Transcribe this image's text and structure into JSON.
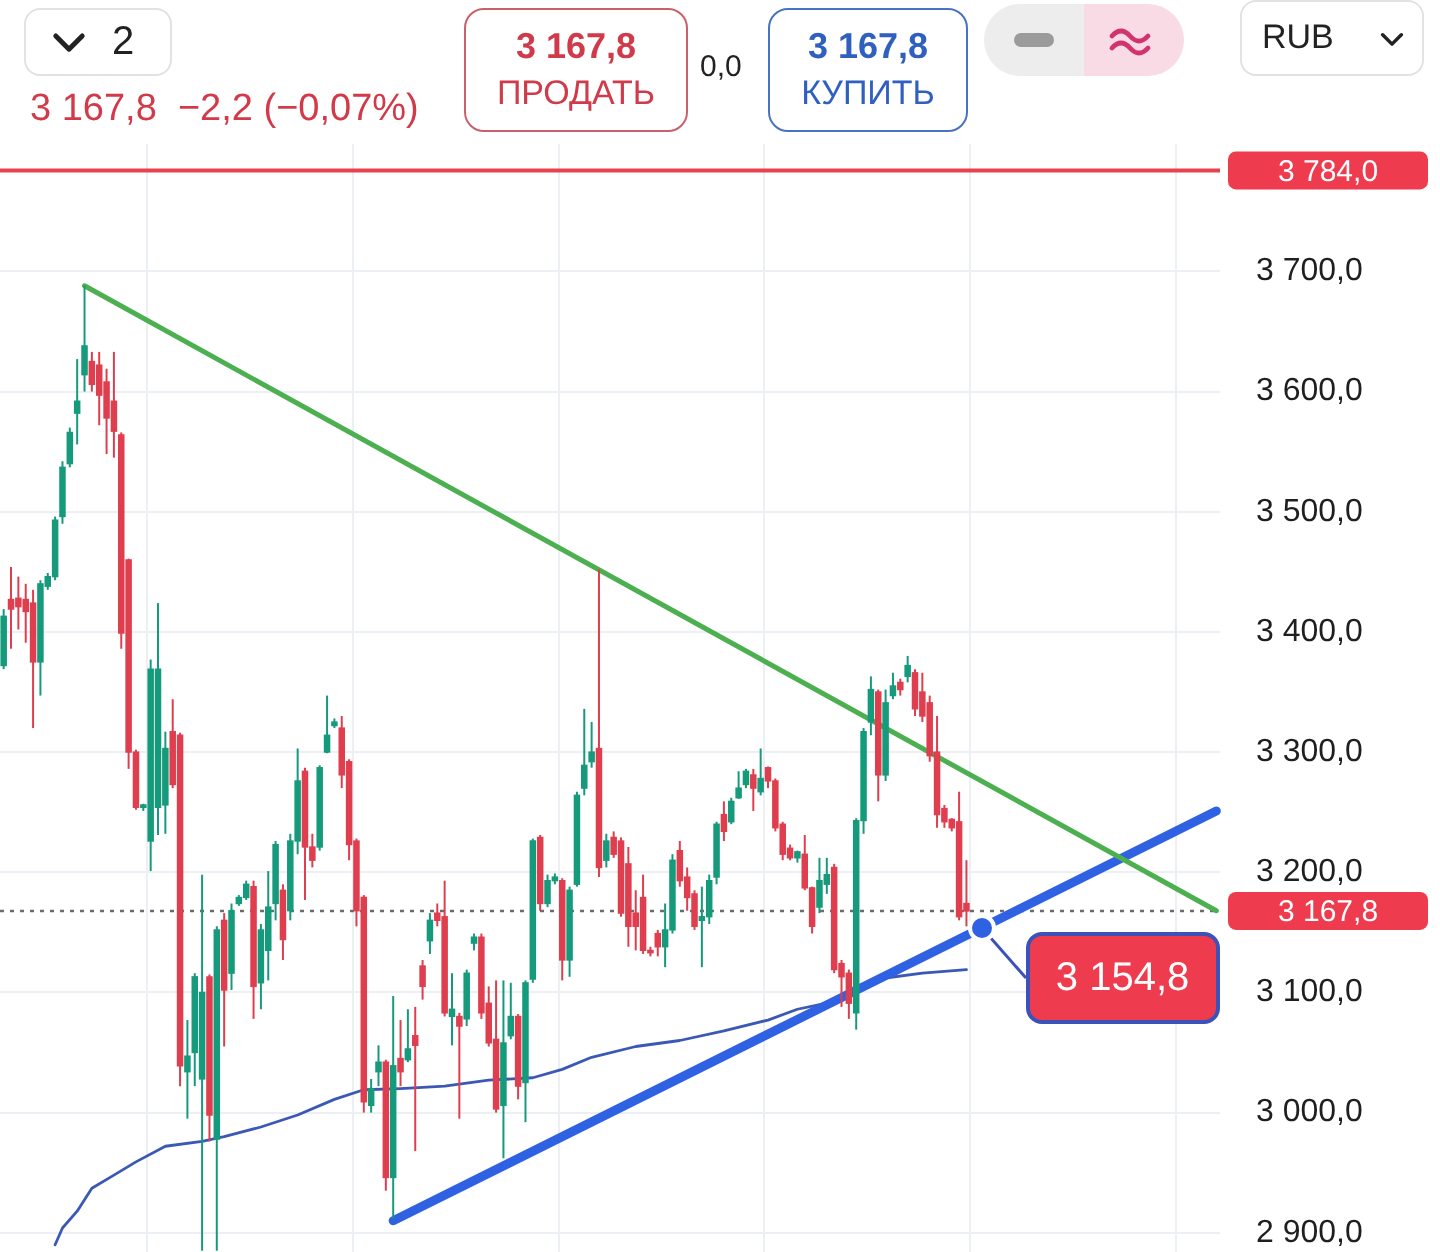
{
  "chart_data": {
    "type": "candlestick",
    "subtitle": "3 167,8  −2,2 (−0,07%)",
    "categories": [
      null,
      null,
      null,
      null,
      null,
      null,
      null,
      null,
      null,
      null,
      null,
      null,
      null,
      null,
      null,
      null,
      null,
      null,
      null,
      null,
      null,
      null,
      null,
      null,
      null,
      null,
      null,
      null,
      null,
      null,
      null,
      null,
      null,
      null,
      null,
      null,
      null,
      null,
      null,
      null,
      null,
      null,
      null,
      null,
      null,
      null,
      null,
      null,
      null,
      null,
      null,
      null,
      null,
      null,
      null,
      null,
      null,
      null,
      null,
      null,
      null,
      null,
      null,
      null,
      null,
      null,
      null,
      null,
      null,
      null,
      null,
      null,
      null,
      null,
      null,
      null,
      null,
      null,
      null,
      null,
      null,
      null,
      null,
      null,
      null,
      null,
      null,
      null,
      null,
      null,
      null,
      null,
      null,
      null,
      null,
      null,
      null,
      null,
      null,
      null,
      null,
      null,
      null,
      null,
      null,
      null,
      null,
      null,
      null,
      null,
      null,
      null,
      null,
      null,
      null,
      null,
      null,
      null,
      null,
      null,
      null,
      null,
      null,
      null,
      null,
      null,
      null,
      null,
      null,
      null,
      null,
      null,
      null,
      null,
      null,
      null,
      null,
      null,
      null,
      null,
      null,
      null,
      null,
      null,
      null,
      null,
      null,
      null,
      null,
      null,
      null,
      null,
      null,
      null,
      null,
      null,
      null,
      null,
      null,
      null,
      null,
      null,
      null,
      null,
      null,
      null
    ],
    "ohlc": [
      [
        3372,
        3419,
        3369,
        3413
      ],
      [
        3427,
        3454,
        3386,
        3419
      ],
      [
        3428,
        3446,
        3402,
        3421
      ],
      [
        3427,
        3440,
        3391,
        3417
      ],
      [
        3424,
        3435,
        3320,
        3375
      ],
      [
        3375,
        3443,
        3347,
        3440
      ],
      [
        3438,
        3449,
        3435,
        3446
      ],
      [
        3446,
        3496,
        3443,
        3493
      ],
      [
        3496,
        3542,
        3490,
        3537
      ],
      [
        3540,
        3570,
        3537,
        3566
      ],
      [
        3582,
        3627,
        3556,
        3592
      ],
      [
        3614,
        3688,
        3600,
        3638
      ],
      [
        3625,
        3633,
        3600,
        3606
      ],
      [
        3622,
        3633,
        3572,
        3597
      ],
      [
        3608,
        3619,
        3548,
        3578
      ],
      [
        3592,
        3633,
        3545,
        3567
      ],
      [
        3564,
        3566,
        3386,
        3399
      ],
      [
        3460,
        3461,
        3286,
        3300
      ],
      [
        3300,
        3302,
        3252,
        3254
      ],
      [
        3254,
        3257,
        3251,
        3256
      ],
      [
        3226,
        3377,
        3201,
        3369
      ],
      [
        3254,
        3424,
        3231,
        3369
      ],
      [
        3256,
        3317,
        3232,
        3303
      ],
      [
        3317,
        3344,
        3270,
        3273
      ],
      [
        3314,
        3316,
        3022,
        3039
      ],
      [
        3034,
        3077,
        2995,
        3047
      ],
      [
        3050,
        3116,
        3022,
        3113
      ],
      [
        3028,
        3198,
        2885,
        3100
      ],
      [
        3113,
        3115,
        2976,
        2998
      ],
      [
        2978,
        3155,
        2885,
        3152
      ],
      [
        3160,
        3166,
        3055,
        3102
      ],
      [
        3116,
        3174,
        3102,
        3168
      ],
      [
        3174,
        3181,
        3172,
        3179
      ],
      [
        3179,
        3193,
        3177,
        3190
      ],
      [
        3188,
        3193,
        3078,
        3105
      ],
      [
        3108,
        3157,
        3086,
        3152
      ],
      [
        3135,
        3201,
        3110,
        3171
      ],
      [
        3174,
        3226,
        3160,
        3223
      ],
      [
        3185,
        3190,
        3127,
        3144
      ],
      [
        3168,
        3232,
        3160,
        3226
      ],
      [
        3226,
        3303,
        3215,
        3276
      ],
      [
        3284,
        3287,
        3177,
        3221
      ],
      [
        3221,
        3232,
        3204,
        3210
      ],
      [
        3221,
        3289,
        3218,
        3287
      ],
      [
        3300,
        3347,
        3299,
        3314
      ],
      [
        3322,
        3328,
        3320,
        3325
      ],
      [
        3320,
        3330,
        3270,
        3281
      ],
      [
        3292,
        3294,
        3210,
        3223
      ],
      [
        3226,
        3228,
        3155,
        3168
      ],
      [
        3179,
        3181,
        3000,
        3009
      ],
      [
        3006,
        3028,
        3000,
        3020
      ],
      [
        3034,
        3056,
        3022,
        3042
      ],
      [
        3042,
        3044,
        2935,
        2946
      ],
      [
        2946,
        3097,
        2912,
        3039
      ],
      [
        3045,
        3077,
        3022,
        3034
      ],
      [
        3044,
        3086,
        3042,
        3053
      ],
      [
        3064,
        3088,
        2968,
        3056
      ],
      [
        3122,
        3127,
        3094,
        3105
      ],
      [
        3143,
        3166,
        3132,
        3160
      ],
      [
        3166,
        3174,
        3155,
        3160
      ],
      [
        3163,
        3193,
        3080,
        3083
      ],
      [
        3080,
        3116,
        3056,
        3086
      ],
      [
        3080,
        3083,
        2995,
        3072
      ],
      [
        3078,
        3119,
        3072,
        3116
      ],
      [
        3141,
        3149,
        3135,
        3146
      ],
      [
        3146,
        3149,
        3078,
        3083
      ],
      [
        3091,
        3105,
        3055,
        3058
      ],
      [
        3061,
        3110,
        3000,
        3003
      ],
      [
        3006,
        3110,
        2962,
        3058
      ],
      [
        3064,
        3108,
        3061,
        3080
      ],
      [
        3080,
        3082,
        3011,
        3022
      ],
      [
        3025,
        3110,
        2992,
        3108
      ],
      [
        3111,
        3228,
        3108,
        3226
      ],
      [
        3229,
        3231,
        3168,
        3174
      ],
      [
        3174,
        3198,
        3171,
        3193
      ],
      [
        3193,
        3199,
        3190,
        3196
      ],
      [
        3193,
        3195,
        3110,
        3127
      ],
      [
        3127,
        3188,
        3113,
        3185
      ],
      [
        3190,
        3267,
        3188,
        3264
      ],
      [
        3270,
        3336,
        3264,
        3289
      ],
      [
        3292,
        3325,
        3287,
        3300
      ],
      [
        3303,
        3452,
        3196,
        3204
      ],
      [
        3210,
        3232,
        3204,
        3226
      ],
      [
        3229,
        3234,
        3212,
        3215
      ],
      [
        3226,
        3229,
        3163,
        3166
      ],
      [
        3207,
        3221,
        3138,
        3155
      ],
      [
        3166,
        3185,
        3135,
        3155
      ],
      [
        3179,
        3198,
        3132,
        3135
      ],
      [
        3135,
        3138,
        3130,
        3133
      ],
      [
        3149,
        3152,
        3130,
        3138
      ],
      [
        3138,
        3174,
        3121,
        3152
      ],
      [
        3152,
        3215,
        3149,
        3210
      ],
      [
        3218,
        3226,
        3188,
        3193
      ],
      [
        3196,
        3204,
        3168,
        3179
      ],
      [
        3182,
        3185,
        3152,
        3155
      ],
      [
        3160,
        3188,
        3121,
        3163
      ],
      [
        3163,
        3198,
        3157,
        3193
      ],
      [
        3196,
        3242,
        3190,
        3240
      ],
      [
        3248,
        3259,
        3226,
        3234
      ],
      [
        3242,
        3262,
        3240,
        3259
      ],
      [
        3262,
        3284,
        3261,
        3270
      ],
      [
        3273,
        3286,
        3270,
        3284
      ],
      [
        3281,
        3286,
        3251,
        3270
      ],
      [
        3267,
        3303,
        3264,
        3278
      ],
      [
        3287,
        3288,
        3270,
        3276
      ],
      [
        3276,
        3278,
        3234,
        3237
      ],
      [
        3240,
        3242,
        3210,
        3215
      ],
      [
        3220,
        3223,
        3210,
        3212
      ],
      [
        3212,
        3218,
        3208,
        3217
      ],
      [
        3215,
        3231,
        3185,
        3187
      ],
      [
        3187,
        3188,
        3149,
        3155
      ],
      [
        3171,
        3212,
        3166,
        3193
      ],
      [
        3190,
        3212,
        3182,
        3198
      ],
      [
        3204,
        3207,
        3116,
        3119
      ],
      [
        3124,
        3127,
        3088,
        3113
      ],
      [
        3116,
        3119,
        3078,
        3091
      ],
      [
        3083,
        3245,
        3069,
        3243
      ],
      [
        3243,
        3320,
        3232,
        3317
      ],
      [
        3325,
        3363,
        3314,
        3352
      ],
      [
        3350,
        3352,
        3259,
        3281
      ],
      [
        3281,
        3352,
        3276,
        3341
      ],
      [
        3347,
        3366,
        3344,
        3355
      ],
      [
        3358,
        3361,
        3347,
        3352
      ],
      [
        3363,
        3380,
        3358,
        3372
      ],
      [
        3366,
        3369,
        3330,
        3336
      ],
      [
        3350,
        3366,
        3325,
        3330
      ],
      [
        3341,
        3347,
        3292,
        3297
      ],
      [
        3300,
        3330,
        3237,
        3248
      ],
      [
        3253,
        3256,
        3237,
        3242
      ],
      [
        3244,
        3245,
        3234,
        3237
      ],
      [
        3242,
        3267,
        3160,
        3163
      ],
      [
        3174,
        3210,
        3155,
        3167.8
      ],
      null,
      null,
      null,
      null,
      null,
      null,
      null,
      null,
      null,
      null,
      null,
      null,
      null,
      null,
      null,
      null,
      null,
      null,
      null,
      null,
      null,
      null,
      null,
      null,
      null,
      null,
      null,
      null,
      null,
      null,
      null,
      null,
      null,
      null
    ],
    "colors": [
      "#169a7c",
      "#df3e4e",
      "#df3e4e",
      "#df3e4e",
      "#df3e4e",
      "#169a7c",
      "#169a7c",
      "#169a7c",
      "#169a7c",
      "#169a7c",
      "#169a7c",
      "#169a7c",
      "#df3e4e",
      "#df3e4e",
      "#df3e4e",
      "#df3e4e",
      "#df3e4e",
      "#df3e4e",
      "#df3e4e",
      "#169a7c",
      "#169a7c",
      "#169a7c",
      "#169a7c",
      "#df3e4e",
      "#df3e4e",
      "#169a7c",
      "#169a7c",
      "#169a7c",
      "#df3e4e",
      "#169a7c",
      "#df3e4e",
      "#169a7c",
      "#169a7c",
      "#169a7c",
      "#df3e4e",
      "#169a7c",
      "#169a7c",
      "#169a7c",
      "#df3e4e",
      "#169a7c",
      "#169a7c",
      "#df3e4e",
      "#df3e4e",
      "#169a7c",
      "#169a7c",
      "#169a7c",
      "#df3e4e",
      "#df3e4e",
      "#df3e4e",
      "#df3e4e",
      "#169a7c",
      "#169a7c",
      "#df3e4e",
      "#169a7c",
      "#df3e4e",
      "#169a7c",
      "#df3e4e",
      "#df3e4e",
      "#169a7c",
      "#df3e4e",
      "#df3e4e",
      "#169a7c",
      "#df3e4e",
      "#169a7c",
      "#169a7c",
      "#df3e4e",
      "#df3e4e",
      "#df3e4e",
      "#169a7c",
      "#169a7c",
      "#df3e4e",
      "#169a7c",
      "#169a7c",
      "#df3e4e",
      "#169a7c",
      "#169a7c",
      "#df3e4e",
      "#169a7c",
      "#169a7c",
      "#169a7c",
      "#169a7c",
      "#df3e4e",
      "#169a7c",
      "#df3e4e",
      "#df3e4e",
      "#df3e4e",
      "#df3e4e",
      "#df3e4e",
      "#df3e4e",
      "#df3e4e",
      "#169a7c",
      "#169a7c",
      "#df3e4e",
      "#df3e4e",
      "#df3e4e",
      "#169a7c",
      "#169a7c",
      "#169a7c",
      "#df3e4e",
      "#169a7c",
      "#169a7c",
      "#169a7c",
      "#df3e4e",
      "#169a7c",
      "#df3e4e",
      "#df3e4e",
      "#df3e4e",
      "#df3e4e",
      "#169a7c",
      "#df3e4e",
      "#df3e4e",
      "#169a7c",
      "#169a7c",
      "#df3e4e",
      "#df3e4e",
      "#df3e4e",
      "#169a7c",
      "#169a7c",
      "#169a7c",
      "#df3e4e",
      "#169a7c",
      "#169a7c",
      "#df3e4e",
      "#169a7c",
      "#df3e4e",
      "#df3e4e",
      "#df3e4e",
      "#df3e4e",
      "#df3e4e",
      "#df3e4e",
      "#df3e4e",
      "#df3e4e",
      null,
      null,
      null,
      null,
      null,
      null,
      null,
      null,
      null,
      null,
      null,
      null,
      null,
      null,
      null,
      null,
      null,
      null,
      null,
      null,
      null,
      null,
      null,
      null,
      null,
      null,
      null,
      null,
      null,
      null,
      null,
      null,
      null,
      null
    ],
    "series": [
      {
        "type": "line",
        "color": "#4caf50",
        "values": [
          null,
          null,
          null,
          null,
          null,
          null,
          null,
          null,
          null,
          null,
          null,
          3688,
          null,
          null,
          null,
          null,
          null,
          null,
          null,
          null,
          null,
          null,
          null,
          null,
          null,
          null,
          null,
          null,
          null,
          null,
          null,
          null,
          null,
          null,
          null,
          null,
          null,
          null,
          null,
          null,
          null,
          null,
          null,
          null,
          null,
          null,
          null,
          null,
          null,
          null,
          null,
          null,
          null,
          null,
          null,
          null,
          null,
          null,
          null,
          null,
          null,
          null,
          null,
          null,
          null,
          null,
          null,
          null,
          null,
          null,
          null,
          null,
          null,
          null,
          null,
          null,
          null,
          null,
          null,
          null,
          null,
          null,
          null,
          null,
          null,
          null,
          null,
          null,
          null,
          null,
          null,
          null,
          null,
          null,
          null,
          null,
          null,
          null,
          null,
          null,
          null,
          null,
          null,
          null,
          null,
          null,
          null,
          null,
          null,
          null,
          null,
          null,
          null,
          null,
          null,
          null,
          null,
          null,
          null,
          null,
          null,
          null,
          null,
          null,
          null,
          null,
          null,
          null,
          null,
          null,
          null,
          null,
          null,
          null,
          null,
          null,
          null,
          null,
          null,
          null,
          null,
          null,
          null,
          null,
          null,
          null,
          null,
          null,
          null,
          null,
          null,
          null,
          null,
          null,
          null,
          null,
          null,
          null,
          null,
          null,
          null,
          null,
          null,
          null,
          null,
          3168
        ]
      },
      {
        "type": "line",
        "color": "#2f62e3",
        "values": [
          null,
          null,
          null,
          null,
          null,
          null,
          null,
          null,
          null,
          null,
          null,
          null,
          null,
          null,
          null,
          null,
          null,
          null,
          null,
          null,
          null,
          null,
          null,
          null,
          null,
          null,
          null,
          null,
          null,
          null,
          null,
          null,
          null,
          null,
          null,
          null,
          null,
          null,
          null,
          null,
          null,
          null,
          null,
          null,
          null,
          null,
          null,
          null,
          null,
          null,
          null,
          null,
          null,
          2910,
          null,
          null,
          null,
          null,
          null,
          null,
          null,
          null,
          null,
          null,
          null,
          null,
          null,
          null,
          null,
          null,
          null,
          null,
          null,
          null,
          null,
          null,
          null,
          null,
          null,
          null,
          null,
          null,
          null,
          null,
          null,
          null,
          null,
          null,
          null,
          null,
          null,
          null,
          null,
          null,
          null,
          null,
          null,
          null,
          null,
          null,
          null,
          null,
          null,
          null,
          null,
          null,
          null,
          null,
          null,
          null,
          null,
          null,
          null,
          null,
          null,
          null,
          null,
          null,
          null,
          null,
          null,
          null,
          null,
          null,
          null,
          null,
          null,
          null,
          null,
          null,
          null,
          null,
          null,
          null,
          null,
          null,
          null,
          null,
          null,
          null,
          null,
          null,
          null,
          null,
          null,
          null,
          null,
          null,
          null,
          null,
          null,
          null,
          null,
          null,
          null,
          null,
          null,
          null,
          null,
          null,
          null,
          null,
          null,
          null,
          null,
          3251
        ]
      },
      {
        "type": "line",
        "color": "#3b58b5",
        "values": [
          null,
          null,
          null,
          null,
          null,
          null,
          null,
          2890,
          2904,
          null,
          2918,
          null,
          2937,
          null,
          null,
          2948,
          null,
          null,
          2959,
          null,
          null,
          null,
          2972,
          null,
          null,
          null,
          null,
          2976,
          null,
          null,
          2980,
          null,
          null,
          null,
          null,
          2988,
          null,
          null,
          null,
          null,
          2998,
          null,
          null,
          null,
          null,
          3011,
          null,
          null,
          null,
          3019,
          null,
          null,
          null,
          null,
          3020,
          null,
          null,
          null,
          null,
          null,
          3022,
          null,
          null,
          null,
          null,
          null,
          3027,
          null,
          null,
          null,
          null,
          null,
          3029,
          null,
          null,
          null,
          3036,
          null,
          null,
          null,
          3046,
          null,
          null,
          null,
          null,
          null,
          3055,
          null,
          null,
          null,
          null,
          null,
          3060,
          null,
          null,
          null,
          null,
          null,
          3068,
          null,
          null,
          null,
          null,
          null,
          3077,
          null,
          null,
          null,
          3086,
          null,
          null,
          null,
          3091,
          null,
          null,
          null,
          3105,
          null,
          null,
          null,
          3112,
          null,
          null,
          null,
          null,
          3116,
          null,
          null,
          null,
          null,
          null,
          3119,
          null,
          null,
          null,
          null,
          null,
          null,
          null,
          null,
          null,
          null,
          null,
          null,
          null,
          null,
          null,
          null,
          null,
          null,
          null,
          null,
          null,
          null,
          null,
          null,
          null,
          null,
          null,
          null,
          null,
          null,
          null,
          null,
          null,
          null
        ]
      }
    ],
    "ylim": [
      2884,
      3806
    ],
    "yticks": [
      {
        "value": 2900,
        "label": "2 900,0"
      },
      {
        "value": 3000,
        "label": "3 000,0"
      },
      {
        "value": 3100,
        "label": "3 100,0"
      },
      {
        "value": 3200,
        "label": "3 200,0"
      },
      {
        "value": 3300,
        "label": "3 300,0"
      },
      {
        "value": 3400,
        "label": "3 400,0"
      },
      {
        "value": 3500,
        "label": "3 500,0"
      },
      {
        "value": 3600,
        "label": "3 600,0"
      },
      {
        "value": 3700,
        "label": "3 700,0"
      }
    ],
    "ref_lines": [
      {
        "axis": "y",
        "value": 3784,
        "label": "3 784,0",
        "color": "#e8424f"
      },
      {
        "axis": "y",
        "value": 3167.8,
        "label": "3 167,8",
        "color": "#6b6b6b",
        "line_style": "dotted"
      }
    ],
    "annotations": [
      "3 167,8",
      "ПРОДАТЬ",
      "0,0",
      "3 167,8",
      "КУПИТЬ",
      "2",
      "RUB",
      "3 154,8"
    ],
    "grid": true
  }
}
